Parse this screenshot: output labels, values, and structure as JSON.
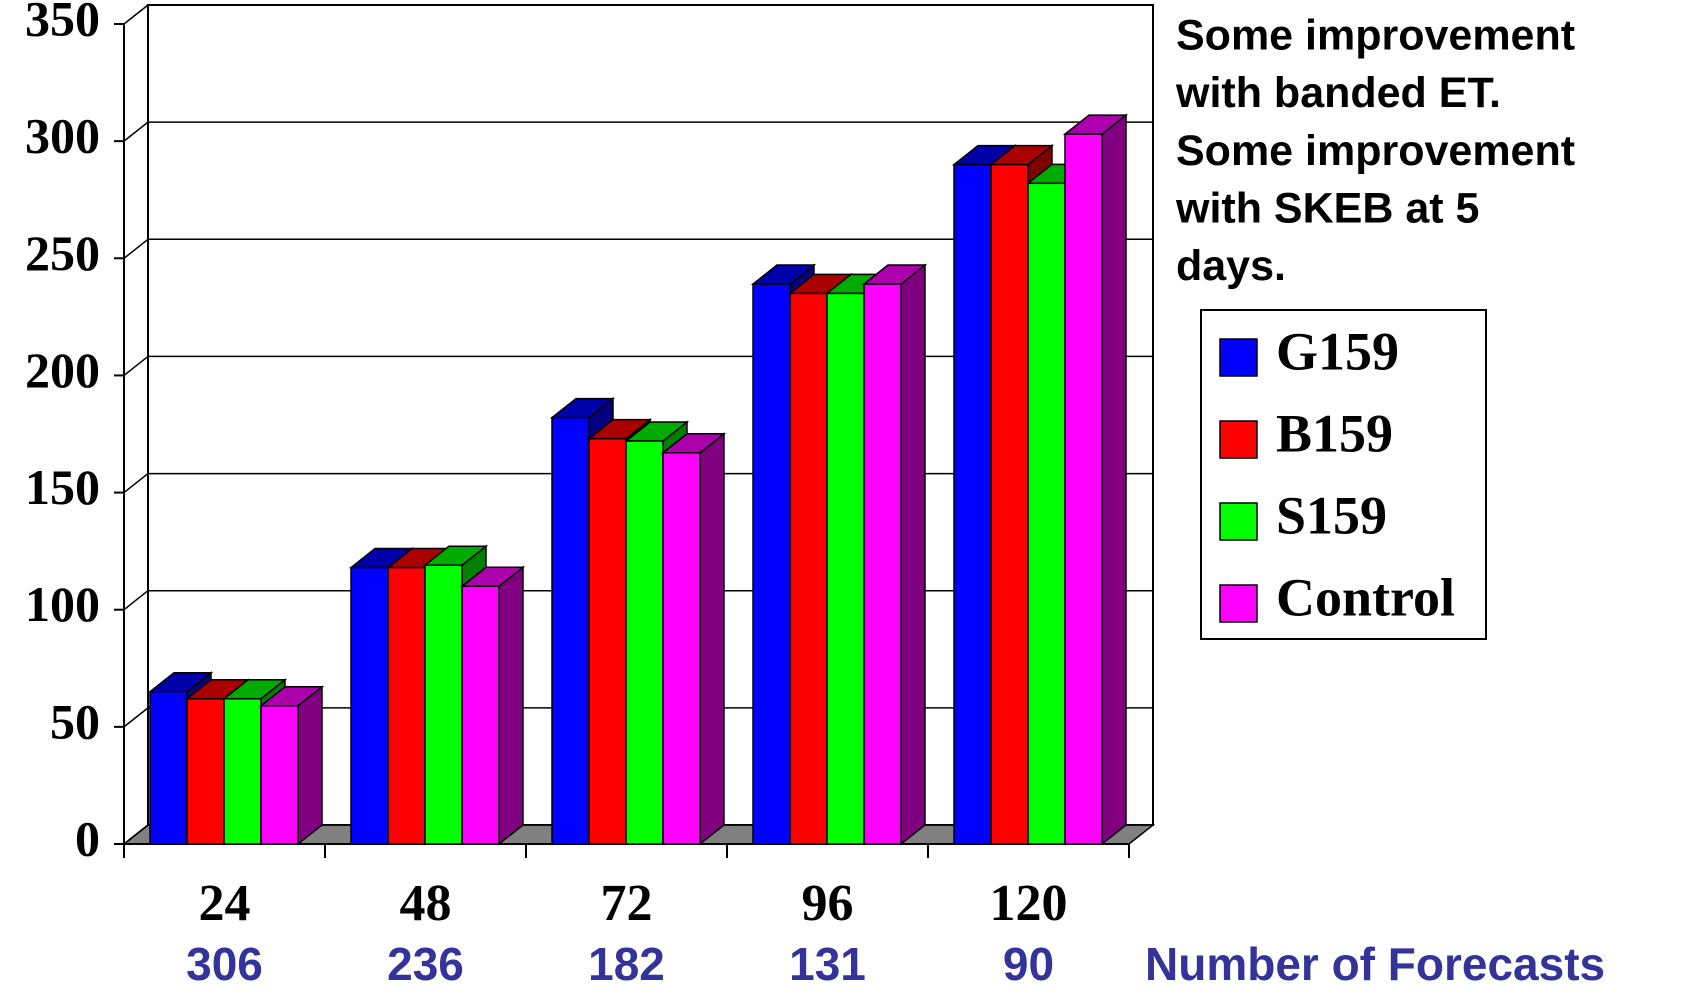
{
  "chart_data": {
    "type": "bar3d",
    "categories": [
      "24",
      "48",
      "72",
      "96",
      "120"
    ],
    "series": [
      {
        "name": "G159",
        "color": "#0000ff",
        "values": [
          65,
          118,
          182,
          239,
          290
        ]
      },
      {
        "name": "B159",
        "color": "#ff0000",
        "values": [
          62,
          118,
          173,
          235,
          290
        ]
      },
      {
        "name": "S159",
        "color": "#00ff00",
        "values": [
          62,
          119,
          172,
          235,
          282
        ]
      },
      {
        "name": "Control",
        "color": "#ff00ff",
        "values": [
          59,
          110,
          167,
          239,
          303
        ]
      }
    ],
    "ylim": [
      0,
      350
    ],
    "yticks": [
      0,
      50,
      100,
      150,
      200,
      250,
      300,
      350
    ],
    "grid": true,
    "forecast_counts": {
      "label": "Number of Forecasts",
      "values": [
        306,
        236,
        182,
        131,
        90
      ]
    },
    "annotation": [
      "Some improvement",
      "with banded ET.",
      "Some improvement",
      "with SKEB at 5",
      "days."
    ],
    "legend_position": "right"
  }
}
